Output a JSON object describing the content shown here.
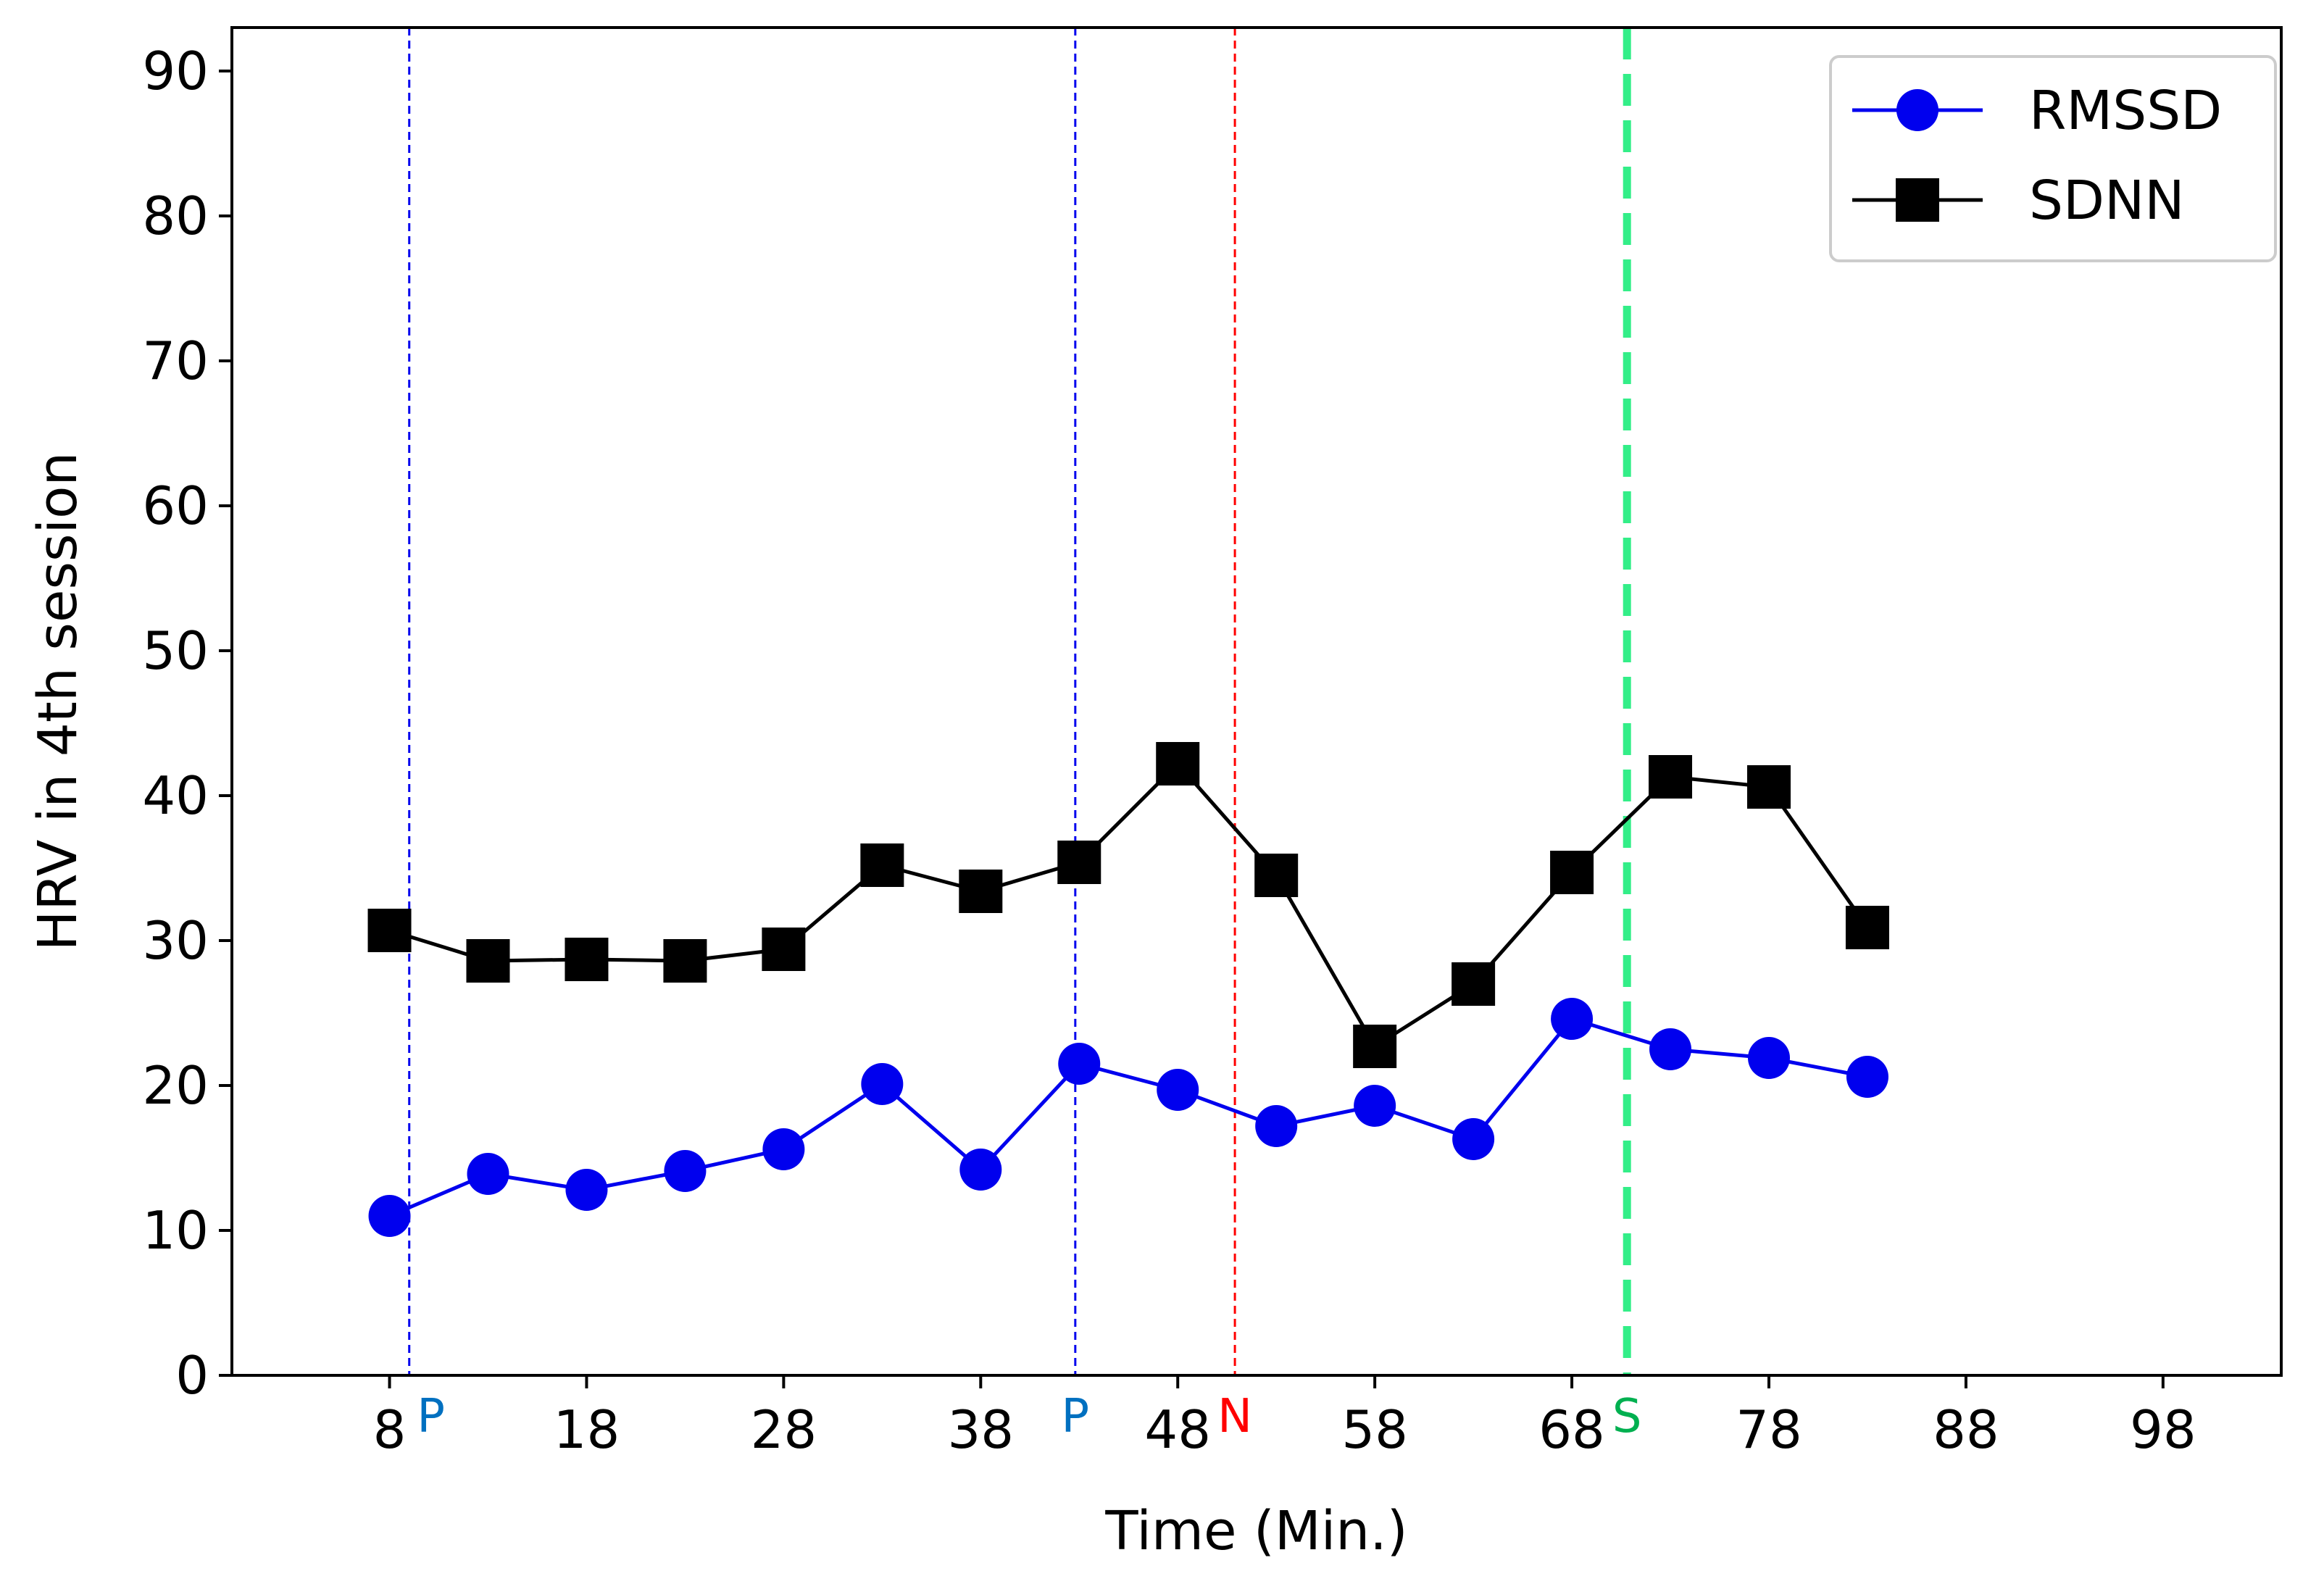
{
  "chart_data": {
    "type": "line",
    "title": "",
    "xlabel": "Time (Min.)",
    "ylabel": "HRV in 4th session",
    "xlim": [
      0,
      104
    ],
    "ylim": [
      0,
      93
    ],
    "x_ticks": [
      8,
      18,
      28,
      38,
      48,
      58,
      68,
      78,
      88,
      98
    ],
    "y_ticks": [
      0,
      10,
      20,
      30,
      40,
      50,
      60,
      70,
      80,
      90
    ],
    "x_tick_labels": [
      "8",
      "18",
      "28",
      "38",
      "48",
      "58",
      "68",
      "78",
      "88",
      "98"
    ],
    "y_tick_labels": [
      "0",
      "10",
      "20",
      "30",
      "40",
      "50",
      "60",
      "70",
      "80",
      "90"
    ],
    "grid": false,
    "legend_position": "top-right",
    "x": [
      8,
      13,
      18,
      23,
      28,
      33,
      38,
      43,
      48,
      53,
      58,
      63,
      68,
      73,
      78,
      83
    ],
    "series": [
      {
        "name": "RMSSD",
        "color": "#0000ee",
        "marker": "circle",
        "values": [
          11.0,
          13.9,
          12.8,
          14.1,
          15.6,
          20.1,
          14.2,
          21.5,
          19.7,
          17.2,
          18.6,
          16.3,
          24.6,
          22.5,
          21.9,
          20.6
        ]
      },
      {
        "name": "SDNN",
        "color": "#000000",
        "marker": "square",
        "values": [
          30.7,
          28.6,
          28.7,
          28.6,
          29.4,
          35.2,
          33.4,
          35.4,
          42.2,
          34.5,
          22.7,
          27.0,
          34.7,
          41.3,
          40.6,
          30.9
        ]
      }
    ],
    "vertical_markers": [
      {
        "x": 9,
        "label": "P",
        "line_color": "#0000ee",
        "label_color": "#0070c0",
        "style": "thin-dashed"
      },
      {
        "x": 42.8,
        "label": "P",
        "line_color": "#0000ee",
        "label_color": "#0070c0",
        "style": "thin-dashed"
      },
      {
        "x": 50.9,
        "label": "N",
        "line_color": "#ff0000",
        "label_color": "#ff0000",
        "style": "thin-dashed"
      },
      {
        "x": 70.8,
        "label": "S",
        "line_color": "#33ee88",
        "label_color": "#00b050",
        "style": "thick-dashed"
      }
    ]
  }
}
